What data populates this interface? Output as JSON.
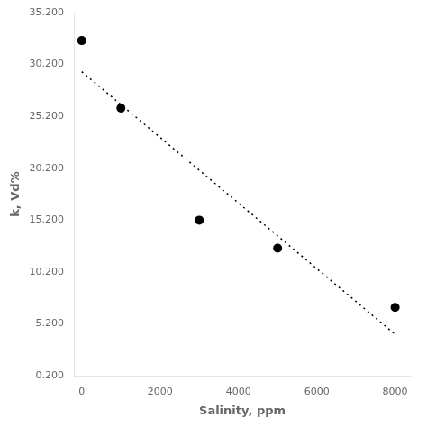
{
  "chart_data": {
    "type": "scatter",
    "xlabel": "Salinity, ppm",
    "ylabel": "k, Vd%",
    "xlim": [
      -200,
      8400
    ],
    "ylim": [
      0.2,
      35.2
    ],
    "xticks": [
      0,
      2000,
      4000,
      6000,
      8000
    ],
    "yticks": [
      {
        "value": 0.2,
        "label": "0.200"
      },
      {
        "value": 5.2,
        "label": "5.200"
      },
      {
        "value": 10.2,
        "label": "10.200"
      },
      {
        "value": 15.2,
        "label": "15.200"
      },
      {
        "value": 20.2,
        "label": "20.200"
      },
      {
        "value": 25.2,
        "label": "25.200"
      },
      {
        "value": 30.2,
        "label": "30.200"
      },
      {
        "value": 35.2,
        "label": "35.200"
      }
    ],
    "grid": false,
    "series": [
      {
        "type": "scatter",
        "x": [
          0,
          1000,
          3000,
          5000,
          8000
        ],
        "values": [
          32.5,
          26.0,
          15.2,
          12.5,
          6.8
        ],
        "color": "black",
        "marker": "circle"
      },
      {
        "type": "line",
        "x": [
          0,
          8000
        ],
        "values": [
          29.5,
          4.2
        ],
        "color": "black",
        "line_style": "dotted"
      }
    ]
  }
}
